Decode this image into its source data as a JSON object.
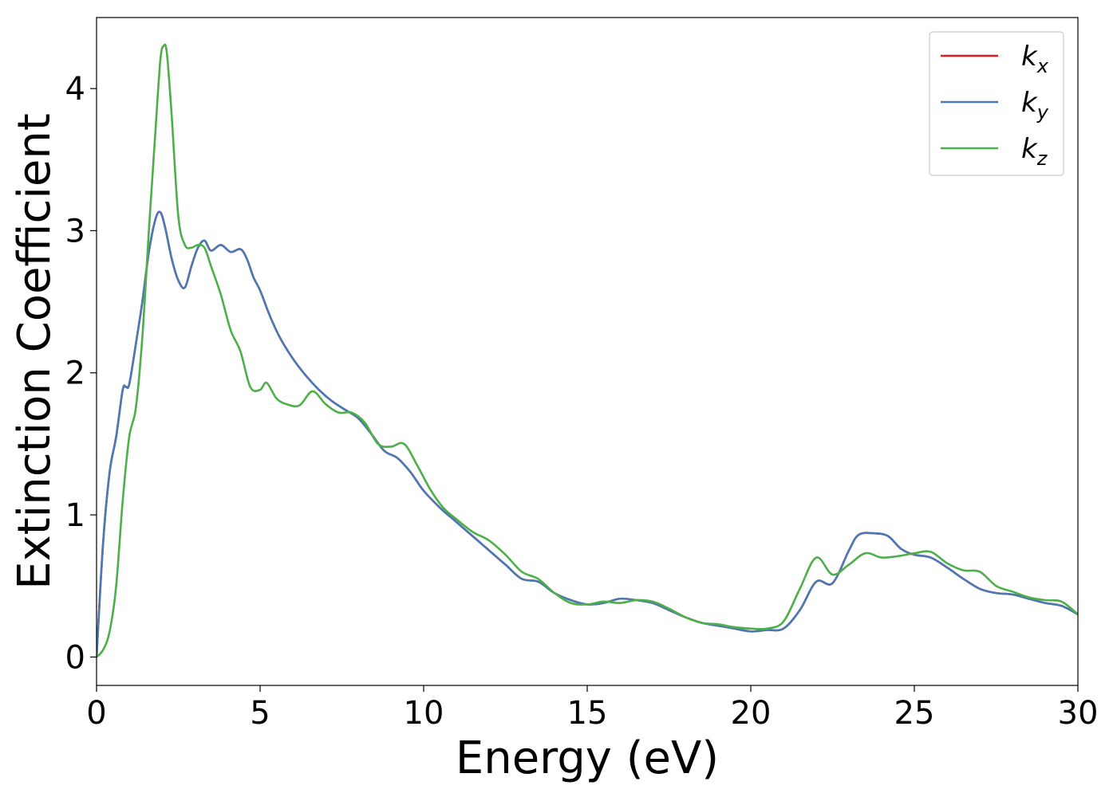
{
  "chart_data": {
    "type": "line",
    "xlabel": "Energy (eV)",
    "ylabel": "Extinction Coefficient",
    "xlim": [
      0,
      30
    ],
    "ylim": [
      -0.2,
      4.5
    ],
    "xticks": [
      0,
      5,
      10,
      15,
      20,
      25,
      30
    ],
    "yticks": [
      0,
      1,
      2,
      3,
      4
    ],
    "grid": false,
    "legend_position": "top-right",
    "series": [
      {
        "name": "k",
        "subscript": "x",
        "color": "#e41a1c",
        "x": [
          0,
          0.2,
          0.4,
          0.6,
          0.8,
          0.9,
          1.0,
          1.2,
          1.4,
          1.6,
          1.8,
          1.95,
          2.1,
          2.3,
          2.5,
          2.7,
          2.9,
          3.1,
          3.3,
          3.5,
          3.8,
          4.1,
          4.4,
          4.6,
          4.8,
          5.0,
          5.3,
          5.6,
          6.0,
          6.4,
          6.8,
          7.2,
          7.6,
          8.0,
          8.4,
          8.8,
          9.2,
          9.6,
          10.0,
          10.5,
          11.0,
          11.5,
          12.0,
          12.5,
          13.0,
          13.5,
          14.0,
          14.5,
          15.0,
          15.5,
          16.0,
          16.5,
          17.0,
          17.5,
          18.0,
          18.5,
          19.0,
          19.5,
          20.0,
          20.5,
          21.0,
          21.5,
          22.0,
          22.5,
          23.0,
          23.3,
          23.8,
          24.2,
          24.6,
          25.0,
          25.5,
          26.0,
          26.5,
          27.0,
          27.5,
          28.0,
          28.5,
          29.0,
          29.5,
          30.0
        ],
        "y": [
          0,
          0.8,
          1.3,
          1.55,
          1.88,
          1.9,
          1.92,
          2.2,
          2.5,
          2.85,
          3.08,
          3.13,
          3.02,
          2.8,
          2.65,
          2.6,
          2.75,
          2.88,
          2.93,
          2.86,
          2.9,
          2.85,
          2.87,
          2.8,
          2.67,
          2.58,
          2.4,
          2.25,
          2.1,
          1.98,
          1.88,
          1.8,
          1.74,
          1.68,
          1.57,
          1.45,
          1.4,
          1.3,
          1.17,
          1.05,
          0.95,
          0.85,
          0.75,
          0.65,
          0.55,
          0.53,
          0.45,
          0.4,
          0.37,
          0.38,
          0.41,
          0.4,
          0.38,
          0.33,
          0.28,
          0.24,
          0.22,
          0.2,
          0.18,
          0.19,
          0.2,
          0.33,
          0.53,
          0.52,
          0.75,
          0.86,
          0.87,
          0.85,
          0.76,
          0.72,
          0.7,
          0.63,
          0.55,
          0.48,
          0.45,
          0.44,
          0.41,
          0.38,
          0.36,
          0.3
        ]
      },
      {
        "name": "k",
        "subscript": "y",
        "color": "#4a7ab5",
        "x": [
          0,
          0.2,
          0.4,
          0.6,
          0.8,
          0.9,
          1.0,
          1.2,
          1.4,
          1.6,
          1.8,
          1.95,
          2.1,
          2.3,
          2.5,
          2.7,
          2.9,
          3.1,
          3.3,
          3.5,
          3.8,
          4.1,
          4.4,
          4.6,
          4.8,
          5.0,
          5.3,
          5.6,
          6.0,
          6.4,
          6.8,
          7.2,
          7.6,
          8.0,
          8.4,
          8.8,
          9.2,
          9.6,
          10.0,
          10.5,
          11.0,
          11.5,
          12.0,
          12.5,
          13.0,
          13.5,
          14.0,
          14.5,
          15.0,
          15.5,
          16.0,
          16.5,
          17.0,
          17.5,
          18.0,
          18.5,
          19.0,
          19.5,
          20.0,
          20.5,
          21.0,
          21.5,
          22.0,
          22.5,
          23.0,
          23.3,
          23.8,
          24.2,
          24.6,
          25.0,
          25.5,
          26.0,
          26.5,
          27.0,
          27.5,
          28.0,
          28.5,
          29.0,
          29.5,
          30.0
        ],
        "y": [
          0,
          0.8,
          1.3,
          1.55,
          1.88,
          1.9,
          1.92,
          2.2,
          2.5,
          2.85,
          3.08,
          3.13,
          3.02,
          2.8,
          2.65,
          2.6,
          2.75,
          2.88,
          2.93,
          2.86,
          2.9,
          2.85,
          2.87,
          2.8,
          2.67,
          2.58,
          2.4,
          2.25,
          2.1,
          1.98,
          1.88,
          1.8,
          1.74,
          1.68,
          1.57,
          1.45,
          1.4,
          1.3,
          1.17,
          1.05,
          0.95,
          0.85,
          0.75,
          0.65,
          0.55,
          0.53,
          0.45,
          0.4,
          0.37,
          0.38,
          0.41,
          0.4,
          0.38,
          0.33,
          0.28,
          0.24,
          0.22,
          0.2,
          0.18,
          0.19,
          0.2,
          0.33,
          0.53,
          0.52,
          0.75,
          0.86,
          0.87,
          0.85,
          0.76,
          0.72,
          0.7,
          0.63,
          0.55,
          0.48,
          0.45,
          0.44,
          0.41,
          0.38,
          0.36,
          0.3
        ]
      },
      {
        "name": "k",
        "subscript": "z",
        "color": "#4daf4a",
        "x": [
          0,
          0.2,
          0.4,
          0.6,
          0.8,
          1.0,
          1.2,
          1.4,
          1.6,
          1.8,
          1.95,
          2.05,
          2.15,
          2.3,
          2.5,
          2.7,
          2.9,
          3.1,
          3.3,
          3.5,
          3.8,
          4.1,
          4.4,
          4.7,
          5.0,
          5.2,
          5.5,
          5.8,
          6.2,
          6.6,
          7.0,
          7.4,
          7.8,
          8.2,
          8.6,
          9.0,
          9.4,
          9.8,
          10.2,
          10.6,
          11.0,
          11.5,
          12.0,
          12.5,
          13.0,
          13.5,
          14.0,
          14.5,
          15.0,
          15.5,
          16.0,
          16.5,
          17.0,
          17.5,
          18.0,
          18.5,
          19.0,
          19.5,
          20.0,
          20.5,
          21.0,
          21.5,
          22.0,
          22.5,
          23.0,
          23.5,
          24.0,
          24.5,
          25.0,
          25.5,
          26.0,
          26.5,
          27.0,
          27.5,
          28.0,
          28.5,
          29.0,
          29.5,
          30.0
        ],
        "y": [
          0,
          0.05,
          0.18,
          0.5,
          1.1,
          1.55,
          1.75,
          2.25,
          3.0,
          3.7,
          4.2,
          4.3,
          4.25,
          3.8,
          3.1,
          2.9,
          2.88,
          2.9,
          2.88,
          2.75,
          2.55,
          2.3,
          2.15,
          1.9,
          1.88,
          1.93,
          1.82,
          1.78,
          1.77,
          1.87,
          1.78,
          1.72,
          1.72,
          1.65,
          1.5,
          1.48,
          1.5,
          1.35,
          1.18,
          1.05,
          0.97,
          0.88,
          0.82,
          0.72,
          0.6,
          0.55,
          0.45,
          0.38,
          0.37,
          0.39,
          0.38,
          0.4,
          0.39,
          0.34,
          0.28,
          0.24,
          0.23,
          0.21,
          0.2,
          0.2,
          0.25,
          0.48,
          0.7,
          0.58,
          0.65,
          0.73,
          0.7,
          0.71,
          0.73,
          0.74,
          0.66,
          0.61,
          0.6,
          0.5,
          0.46,
          0.42,
          0.4,
          0.39,
          0.3
        ]
      }
    ]
  }
}
